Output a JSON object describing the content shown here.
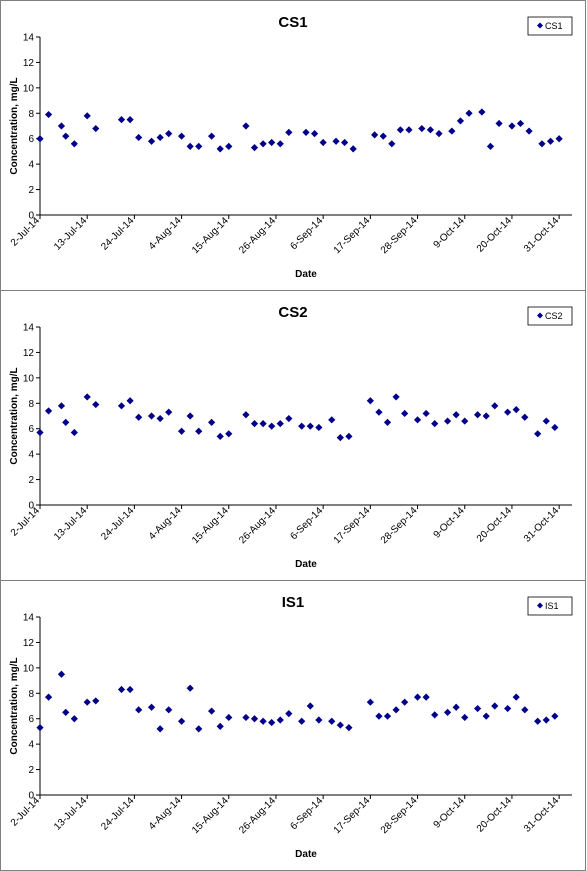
{
  "charts": [
    {
      "type": "scatter",
      "title": "CS1",
      "legend": "CS1",
      "legend_position": "top-right",
      "xlabel": "Date",
      "ylabel": "Concentration, mg/L",
      "ylim": [
        0,
        14
      ],
      "yticks": [
        "0",
        "2",
        "4",
        "6",
        "8",
        "10",
        "12",
        "14"
      ],
      "xlim": [
        "2014-07-02",
        "2014-11-03"
      ],
      "xtick_labels": [
        "2-Jul-14",
        "13-Jul-14",
        "24-Jul-14",
        "4-Aug-14",
        "15-Aug-14",
        "26-Aug-14",
        "6-Sep-14",
        "17-Sep-14",
        "28-Sep-14",
        "9-Oct-14",
        "20-Oct-14",
        "31-Oct-14"
      ],
      "xtick_dates": [
        "2014-07-02",
        "2014-07-13",
        "2014-07-24",
        "2014-08-04",
        "2014-08-15",
        "2014-08-26",
        "2014-09-06",
        "2014-09-17",
        "2014-09-28",
        "2014-10-09",
        "2014-10-20",
        "2014-10-31"
      ],
      "grid": false,
      "marker_color": "#00008B",
      "points": [
        {
          "x": "2014-07-02",
          "y": 6.0
        },
        {
          "x": "2014-07-04",
          "y": 7.9
        },
        {
          "x": "2014-07-07",
          "y": 7.0
        },
        {
          "x": "2014-07-08",
          "y": 6.2
        },
        {
          "x": "2014-07-10",
          "y": 5.6
        },
        {
          "x": "2014-07-13",
          "y": 7.8
        },
        {
          "x": "2014-07-15",
          "y": 6.8
        },
        {
          "x": "2014-07-21",
          "y": 7.5
        },
        {
          "x": "2014-07-23",
          "y": 7.5
        },
        {
          "x": "2014-07-25",
          "y": 6.1
        },
        {
          "x": "2014-07-28",
          "y": 5.8
        },
        {
          "x": "2014-07-30",
          "y": 6.1
        },
        {
          "x": "2014-08-01",
          "y": 6.4
        },
        {
          "x": "2014-08-04",
          "y": 6.2
        },
        {
          "x": "2014-08-06",
          "y": 5.4
        },
        {
          "x": "2014-08-08",
          "y": 5.4
        },
        {
          "x": "2014-08-11",
          "y": 6.2
        },
        {
          "x": "2014-08-13",
          "y": 5.2
        },
        {
          "x": "2014-08-15",
          "y": 5.4
        },
        {
          "x": "2014-08-19",
          "y": 7.0
        },
        {
          "x": "2014-08-21",
          "y": 5.3
        },
        {
          "x": "2014-08-23",
          "y": 5.6
        },
        {
          "x": "2014-08-25",
          "y": 5.7
        },
        {
          "x": "2014-08-27",
          "y": 5.6
        },
        {
          "x": "2014-08-29",
          "y": 6.5
        },
        {
          "x": "2014-09-02",
          "y": 6.5
        },
        {
          "x": "2014-09-04",
          "y": 6.4
        },
        {
          "x": "2014-09-06",
          "y": 5.7
        },
        {
          "x": "2014-09-09",
          "y": 5.8
        },
        {
          "x": "2014-09-11",
          "y": 5.7
        },
        {
          "x": "2014-09-13",
          "y": 5.2
        },
        {
          "x": "2014-09-18",
          "y": 6.3
        },
        {
          "x": "2014-09-20",
          "y": 6.2
        },
        {
          "x": "2014-09-22",
          "y": 5.6
        },
        {
          "x": "2014-09-24",
          "y": 6.7
        },
        {
          "x": "2014-09-26",
          "y": 6.7
        },
        {
          "x": "2014-09-29",
          "y": 6.8
        },
        {
          "x": "2014-10-01",
          "y": 6.7
        },
        {
          "x": "2014-10-03",
          "y": 6.4
        },
        {
          "x": "2014-10-06",
          "y": 6.6
        },
        {
          "x": "2014-10-08",
          "y": 7.4
        },
        {
          "x": "2014-10-10",
          "y": 8.0
        },
        {
          "x": "2014-10-13",
          "y": 8.1
        },
        {
          "x": "2014-10-15",
          "y": 5.4
        },
        {
          "x": "2014-10-17",
          "y": 7.2
        },
        {
          "x": "2014-10-20",
          "y": 7.0
        },
        {
          "x": "2014-10-22",
          "y": 7.2
        },
        {
          "x": "2014-10-24",
          "y": 6.6
        },
        {
          "x": "2014-10-27",
          "y": 5.6
        },
        {
          "x": "2014-10-29",
          "y": 5.8
        },
        {
          "x": "2014-10-31",
          "y": 6.0
        }
      ]
    },
    {
      "type": "scatter",
      "title": "CS2",
      "legend": "CS2",
      "legend_position": "top-right",
      "xlabel": "Date",
      "ylabel": "Concentration, mg/L",
      "ylim": [
        0,
        14
      ],
      "yticks": [
        "0",
        "2",
        "4",
        "6",
        "8",
        "10",
        "12",
        "14"
      ],
      "xlim": [
        "2014-07-02",
        "2014-11-03"
      ],
      "xtick_labels": [
        "2-Jul-14",
        "13-Jul-14",
        "24-Jul-14",
        "4-Aug-14",
        "15-Aug-14",
        "26-Aug-14",
        "6-Sep-14",
        "17-Sep-14",
        "28-Sep-14",
        "9-Oct-14",
        "20-Oct-14",
        "31-Oct-14"
      ],
      "xtick_dates": [
        "2014-07-02",
        "2014-07-13",
        "2014-07-24",
        "2014-08-04",
        "2014-08-15",
        "2014-08-26",
        "2014-09-06",
        "2014-09-17",
        "2014-09-28",
        "2014-10-09",
        "2014-10-20",
        "2014-10-31"
      ],
      "grid": false,
      "marker_color": "#00008B",
      "points": [
        {
          "x": "2014-07-02",
          "y": 5.7
        },
        {
          "x": "2014-07-04",
          "y": 7.4
        },
        {
          "x": "2014-07-07",
          "y": 7.8
        },
        {
          "x": "2014-07-08",
          "y": 6.5
        },
        {
          "x": "2014-07-10",
          "y": 5.7
        },
        {
          "x": "2014-07-13",
          "y": 8.5
        },
        {
          "x": "2014-07-15",
          "y": 7.9
        },
        {
          "x": "2014-07-21",
          "y": 7.8
        },
        {
          "x": "2014-07-23",
          "y": 8.2
        },
        {
          "x": "2014-07-25",
          "y": 6.9
        },
        {
          "x": "2014-07-28",
          "y": 7.0
        },
        {
          "x": "2014-07-30",
          "y": 6.8
        },
        {
          "x": "2014-08-01",
          "y": 7.3
        },
        {
          "x": "2014-08-04",
          "y": 5.8
        },
        {
          "x": "2014-08-06",
          "y": 7.0
        },
        {
          "x": "2014-08-08",
          "y": 5.8
        },
        {
          "x": "2014-08-11",
          "y": 6.5
        },
        {
          "x": "2014-08-13",
          "y": 5.4
        },
        {
          "x": "2014-08-15",
          "y": 5.6
        },
        {
          "x": "2014-08-19",
          "y": 7.1
        },
        {
          "x": "2014-08-21",
          "y": 6.4
        },
        {
          "x": "2014-08-23",
          "y": 6.4
        },
        {
          "x": "2014-08-25",
          "y": 6.2
        },
        {
          "x": "2014-08-27",
          "y": 6.4
        },
        {
          "x": "2014-08-29",
          "y": 6.8
        },
        {
          "x": "2014-09-01",
          "y": 6.2
        },
        {
          "x": "2014-09-03",
          "y": 6.2
        },
        {
          "x": "2014-09-05",
          "y": 6.1
        },
        {
          "x": "2014-09-08",
          "y": 6.7
        },
        {
          "x": "2014-09-10",
          "y": 5.3
        },
        {
          "x": "2014-09-12",
          "y": 5.4
        },
        {
          "x": "2014-09-17",
          "y": 8.2
        },
        {
          "x": "2014-09-19",
          "y": 7.3
        },
        {
          "x": "2014-09-21",
          "y": 6.5
        },
        {
          "x": "2014-09-23",
          "y": 8.5
        },
        {
          "x": "2014-09-25",
          "y": 7.2
        },
        {
          "x": "2014-09-28",
          "y": 6.7
        },
        {
          "x": "2014-09-30",
          "y": 7.2
        },
        {
          "x": "2014-10-02",
          "y": 6.4
        },
        {
          "x": "2014-10-05",
          "y": 6.6
        },
        {
          "x": "2014-10-07",
          "y": 7.1
        },
        {
          "x": "2014-10-09",
          "y": 6.6
        },
        {
          "x": "2014-10-12",
          "y": 7.1
        },
        {
          "x": "2014-10-14",
          "y": 7.0
        },
        {
          "x": "2014-10-16",
          "y": 7.8
        },
        {
          "x": "2014-10-19",
          "y": 7.3
        },
        {
          "x": "2014-10-21",
          "y": 7.5
        },
        {
          "x": "2014-10-23",
          "y": 6.9
        },
        {
          "x": "2014-10-26",
          "y": 5.6
        },
        {
          "x": "2014-10-28",
          "y": 6.6
        },
        {
          "x": "2014-10-30",
          "y": 6.1
        }
      ]
    },
    {
      "type": "scatter",
      "title": "IS1",
      "legend": "IS1",
      "legend_position": "top-right",
      "xlabel": "Date",
      "ylabel": "Concentration, mg/L",
      "ylim": [
        0,
        14
      ],
      "yticks": [
        "0",
        "2",
        "4",
        "6",
        "8",
        "10",
        "12",
        "14"
      ],
      "xlim": [
        "2014-07-02",
        "2014-11-03"
      ],
      "xtick_labels": [
        "2-Jul-14",
        "13-Jul-14",
        "24-Jul-14",
        "4-Aug-14",
        "15-Aug-14",
        "26-Aug-14",
        "6-Sep-14",
        "17-Sep-14",
        "28-Sep-14",
        "9-Oct-14",
        "20-Oct-14",
        "31-Oct-14"
      ],
      "xtick_dates": [
        "2014-07-02",
        "2014-07-13",
        "2014-07-24",
        "2014-08-04",
        "2014-08-15",
        "2014-08-26",
        "2014-09-06",
        "2014-09-17",
        "2014-09-28",
        "2014-10-09",
        "2014-10-20",
        "2014-10-31"
      ],
      "grid": false,
      "marker_color": "#00008B",
      "points": [
        {
          "x": "2014-07-02",
          "y": 5.3
        },
        {
          "x": "2014-07-04",
          "y": 7.7
        },
        {
          "x": "2014-07-07",
          "y": 9.5
        },
        {
          "x": "2014-07-08",
          "y": 6.5
        },
        {
          "x": "2014-07-10",
          "y": 6.0
        },
        {
          "x": "2014-07-13",
          "y": 7.3
        },
        {
          "x": "2014-07-15",
          "y": 7.4
        },
        {
          "x": "2014-07-21",
          "y": 8.3
        },
        {
          "x": "2014-07-23",
          "y": 8.3
        },
        {
          "x": "2014-07-25",
          "y": 6.7
        },
        {
          "x": "2014-07-28",
          "y": 6.9
        },
        {
          "x": "2014-07-30",
          "y": 5.2
        },
        {
          "x": "2014-08-01",
          "y": 6.7
        },
        {
          "x": "2014-08-04",
          "y": 5.8
        },
        {
          "x": "2014-08-06",
          "y": 8.4
        },
        {
          "x": "2014-08-08",
          "y": 5.2
        },
        {
          "x": "2014-08-11",
          "y": 6.6
        },
        {
          "x": "2014-08-13",
          "y": 5.4
        },
        {
          "x": "2014-08-15",
          "y": 6.1
        },
        {
          "x": "2014-08-19",
          "y": 6.1
        },
        {
          "x": "2014-08-21",
          "y": 6.0
        },
        {
          "x": "2014-08-23",
          "y": 5.8
        },
        {
          "x": "2014-08-25",
          "y": 5.7
        },
        {
          "x": "2014-08-27",
          "y": 5.9
        },
        {
          "x": "2014-08-29",
          "y": 6.4
        },
        {
          "x": "2014-09-01",
          "y": 5.8
        },
        {
          "x": "2014-09-03",
          "y": 7.0
        },
        {
          "x": "2014-09-05",
          "y": 5.9
        },
        {
          "x": "2014-09-08",
          "y": 5.8
        },
        {
          "x": "2014-09-10",
          "y": 5.5
        },
        {
          "x": "2014-09-12",
          "y": 5.3
        },
        {
          "x": "2014-09-17",
          "y": 7.3
        },
        {
          "x": "2014-09-19",
          "y": 6.2
        },
        {
          "x": "2014-09-21",
          "y": 6.2
        },
        {
          "x": "2014-09-23",
          "y": 6.7
        },
        {
          "x": "2014-09-25",
          "y": 7.3
        },
        {
          "x": "2014-09-28",
          "y": 7.7
        },
        {
          "x": "2014-09-30",
          "y": 7.7
        },
        {
          "x": "2014-10-02",
          "y": 6.3
        },
        {
          "x": "2014-10-05",
          "y": 6.5
        },
        {
          "x": "2014-10-07",
          "y": 6.9
        },
        {
          "x": "2014-10-09",
          "y": 6.1
        },
        {
          "x": "2014-10-12",
          "y": 6.8
        },
        {
          "x": "2014-10-14",
          "y": 6.2
        },
        {
          "x": "2014-10-16",
          "y": 7.0
        },
        {
          "x": "2014-10-19",
          "y": 6.8
        },
        {
          "x": "2014-10-21",
          "y": 7.7
        },
        {
          "x": "2014-10-23",
          "y": 6.7
        },
        {
          "x": "2014-10-26",
          "y": 5.8
        },
        {
          "x": "2014-10-28",
          "y": 5.9
        },
        {
          "x": "2014-10-30",
          "y": 6.2
        }
      ]
    }
  ]
}
